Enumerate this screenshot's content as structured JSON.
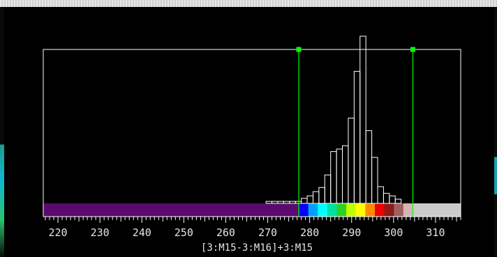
{
  "colors": {
    "background": "#000000",
    "frame": "#ffffff",
    "handle": "#00ff00",
    "bar_outline": "#ffffff",
    "below_range": "#5a0a6e",
    "above_range": "#cccccc"
  },
  "chart_data": {
    "type": "bar",
    "title": "",
    "xlabel": "[3:M15-3:M16]+3:M15",
    "ylabel": "",
    "xlim": [
      216.5,
      316
    ],
    "ylim": [
      0,
      1
    ],
    "xticks": [
      220,
      230,
      240,
      250,
      260,
      270,
      280,
      290,
      300,
      310
    ],
    "xtick_labels": [
      "220",
      "230",
      "240",
      "250",
      "260",
      "270",
      "280",
      "290",
      "300",
      "310"
    ],
    "bin_width": 1.4,
    "bins": [
      {
        "x0": 269.6,
        "y": 0.012
      },
      {
        "x0": 271.0,
        "y": 0.012
      },
      {
        "x0": 272.4,
        "y": 0.012
      },
      {
        "x0": 273.8,
        "y": 0.012
      },
      {
        "x0": 275.2,
        "y": 0.012
      },
      {
        "x0": 276.6,
        "y": 0.012
      },
      {
        "x0": 278.0,
        "y": 0.03
      },
      {
        "x0": 279.4,
        "y": 0.045
      },
      {
        "x0": 280.8,
        "y": 0.07
      },
      {
        "x0": 282.2,
        "y": 0.095
      },
      {
        "x0": 283.6,
        "y": 0.17
      },
      {
        "x0": 285.0,
        "y": 0.31
      },
      {
        "x0": 286.4,
        "y": 0.325
      },
      {
        "x0": 287.8,
        "y": 0.345
      },
      {
        "x0": 289.2,
        "y": 0.51
      },
      {
        "x0": 290.6,
        "y": 0.79
      },
      {
        "x0": 292.0,
        "y": 1.0
      },
      {
        "x0": 293.4,
        "y": 0.435
      },
      {
        "x0": 294.8,
        "y": 0.275
      },
      {
        "x0": 296.2,
        "y": 0.1
      },
      {
        "x0": 297.6,
        "y": 0.06
      },
      {
        "x0": 299.0,
        "y": 0.045
      },
      {
        "x0": 300.4,
        "y": 0.025
      }
    ],
    "range_min": 277.4,
    "range_max": 304.6,
    "handle_level": 0.85,
    "colormap": [
      "#0000ff",
      "#00a0ff",
      "#00ffff",
      "#00e0a0",
      "#30d020",
      "#c0ff00",
      "#ffff00",
      "#ff8c00",
      "#ee0000",
      "#8b1a1a",
      "#a06060",
      "#d8b4b4"
    ]
  }
}
